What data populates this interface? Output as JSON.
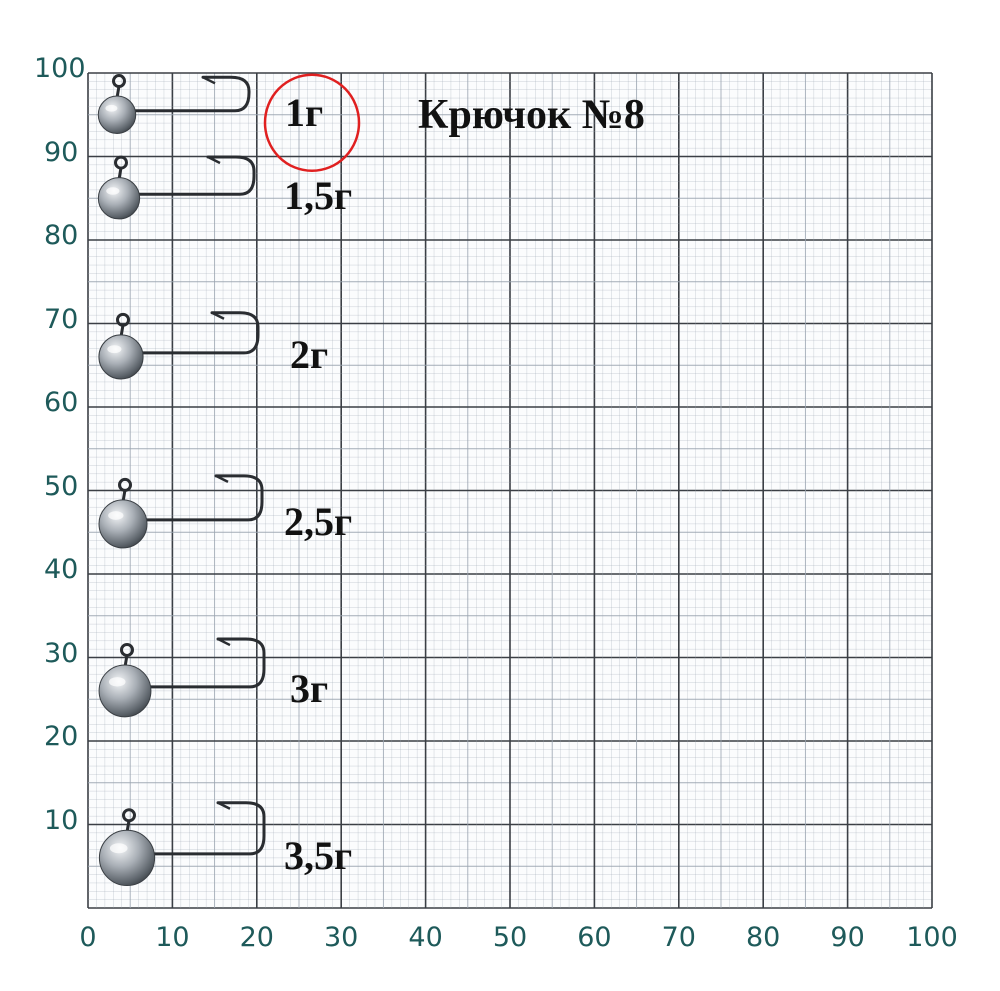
{
  "title": "Крючок №8",
  "highlight_color": "#e02020",
  "grid": {
    "major_color": "#3b3f45",
    "minor_color": "#9aa4b0",
    "label_color": "#1e5a5a"
  },
  "axis": {
    "x_labels": [
      "0",
      "10",
      "20",
      "30",
      "40",
      "50",
      "60",
      "70",
      "80",
      "90",
      "100"
    ],
    "y_labels": [
      "100",
      "90",
      "80",
      "70",
      "60",
      "50",
      "40",
      "30",
      "20",
      "10"
    ]
  },
  "jigs": [
    {
      "label": "1г",
      "y_center": 95,
      "highlighted": true,
      "icon": "jig-hook-icon"
    },
    {
      "label": "1,5г",
      "y_center": 85,
      "highlighted": false,
      "icon": "jig-hook-icon"
    },
    {
      "label": "2г",
      "y_center": 66,
      "highlighted": false,
      "icon": "jig-hook-icon"
    },
    {
      "label": "2,5г",
      "y_center": 46,
      "highlighted": false,
      "icon": "jig-hook-icon"
    },
    {
      "label": "3г",
      "y_center": 26,
      "highlighted": false,
      "icon": "jig-hook-icon"
    },
    {
      "label": "3,5г",
      "y_center": 6,
      "highlighted": false,
      "icon": "jig-hook-icon"
    }
  ]
}
